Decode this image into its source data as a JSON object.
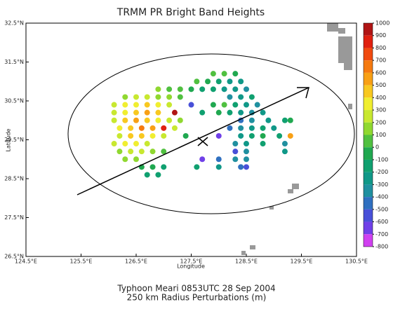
{
  "chart_data": {
    "type": "scatter",
    "title": "TRMM PR Bright Band Heights",
    "x_label": "Longitude",
    "y_label": "Latitude",
    "caption": [
      "Typhoon Meari 0853UTC 28 Sep 2004",
      "250 km Radius Perturbations (m)"
    ],
    "xlim": [
      124.5,
      130.5
    ],
    "ylim": [
      26.5,
      32.5
    ],
    "xticks": [
      {
        "value": 124.5,
        "label": "124.5°E"
      },
      {
        "value": 125.5,
        "label": "125.5°E"
      },
      {
        "value": 126.5,
        "label": "126.5°E"
      },
      {
        "value": 127.5,
        "label": "127.5°E"
      },
      {
        "value": 128.5,
        "label": "128.5°E"
      },
      {
        "value": 129.5,
        "label": "129.5°E"
      },
      {
        "value": 130.5,
        "label": "130.5°E"
      }
    ],
    "yticks": [
      {
        "value": 26.5,
        "label": "26.5°N"
      },
      {
        "value": 27.5,
        "label": "27.5°N"
      },
      {
        "value": 28.5,
        "label": "28.5°N"
      },
      {
        "value": 29.5,
        "label": "29.5°N"
      },
      {
        "value": 30.5,
        "label": "30.5°N"
      },
      {
        "value": 31.5,
        "label": "31.5°N"
      },
      {
        "value": 32.5,
        "label": "32.5°N"
      }
    ],
    "colorbar": {
      "ticks": [
        1000,
        900,
        800,
        700,
        600,
        500,
        400,
        300,
        200,
        100,
        0,
        -100,
        -200,
        -300,
        -400,
        -500,
        -600,
        -700,
        -800
      ],
      "colors": [
        "#b01515",
        "#e02010",
        "#f04a10",
        "#f57a10",
        "#f8a015",
        "#f8c820",
        "#f0ee30",
        "#c8e830",
        "#90d830",
        "#50c040",
        "#20a850",
        "#10a070",
        "#109888",
        "#2090a0",
        "#3070c0",
        "#4850d8",
        "#7040e8",
        "#d040f0"
      ]
    },
    "x": [
      126.9,
      127.1,
      127.3,
      127.5,
      127.7,
      127.9,
      128.1,
      128.3,
      128.5,
      127.6,
      127.8,
      128.0,
      128.2,
      128.4,
      127.9,
      128.1,
      128.3,
      126.3,
      126.5,
      126.7,
      126.9,
      127.1,
      127.3,
      128.2,
      128.4,
      128.6,
      126.1,
      126.3,
      126.5,
      126.7,
      126.9,
      127.1,
      127.5,
      127.9,
      128.1,
      128.3,
      128.5,
      128.7,
      126.1,
      126.3,
      126.5,
      126.7,
      126.9,
      127.2,
      127.7,
      128.0,
      128.2,
      128.4,
      128.6,
      128.8,
      126.1,
      126.3,
      126.5,
      126.7,
      126.9,
      127.1,
      127.3,
      128.4,
      128.6,
      128.9,
      129.2,
      129.3,
      126.2,
      126.4,
      126.6,
      126.8,
      127.0,
      127.2,
      128.2,
      128.4,
      128.6,
      128.8,
      129.0,
      126.2,
      126.4,
      126.6,
      126.8,
      127.0,
      127.4,
      128.0,
      128.4,
      128.6,
      128.8,
      129.1,
      129.3,
      126.1,
      126.3,
      126.5,
      126.7,
      128.3,
      128.5,
      128.8,
      129.2,
      126.2,
      126.4,
      126.6,
      126.8,
      127.0,
      128.3,
      128.5,
      129.2,
      126.3,
      126.5,
      127.7,
      128.0,
      128.3,
      128.5,
      126.6,
      126.8,
      127.0,
      127.6,
      128.0,
      128.4,
      128.5,
      126.7,
      126.9
    ],
    "y": [
      30.8,
      30.8,
      30.8,
      30.8,
      30.8,
      30.8,
      30.8,
      30.8,
      30.8,
      31.0,
      31.0,
      31.0,
      31.0,
      31.0,
      31.2,
      31.2,
      31.2,
      30.6,
      30.6,
      30.6,
      30.6,
      30.6,
      30.6,
      30.6,
      30.6,
      30.6,
      30.4,
      30.4,
      30.4,
      30.4,
      30.4,
      30.4,
      30.4,
      30.4,
      30.4,
      30.4,
      30.4,
      30.4,
      30.2,
      30.2,
      30.2,
      30.2,
      30.2,
      30.2,
      30.2,
      30.2,
      30.2,
      30.2,
      30.2,
      30.2,
      30.0,
      30.0,
      30.0,
      30.0,
      30.0,
      30.0,
      30.0,
      30.0,
      30.0,
      30.0,
      30.0,
      30.0,
      29.8,
      29.8,
      29.8,
      29.8,
      29.8,
      29.8,
      29.8,
      29.8,
      29.8,
      29.8,
      29.8,
      29.6,
      29.6,
      29.6,
      29.6,
      29.6,
      29.6,
      29.6,
      29.6,
      29.6,
      29.6,
      29.6,
      29.6,
      29.4,
      29.4,
      29.4,
      29.4,
      29.4,
      29.4,
      29.4,
      29.4,
      29.2,
      29.2,
      29.2,
      29.2,
      29.2,
      29.2,
      29.2,
      29.2,
      29.0,
      29.0,
      29.0,
      29.0,
      29.0,
      29.0,
      28.8,
      28.8,
      28.8,
      28.8,
      28.8,
      28.8,
      28.8,
      28.6,
      28.6
    ],
    "values": [
      100,
      50,
      0,
      -100,
      -150,
      -200,
      -250,
      -300,
      -350,
      0,
      -100,
      -200,
      -300,
      -250,
      50,
      0,
      -100,
      150,
      200,
      250,
      150,
      100,
      50,
      -400,
      -300,
      -200,
      200,
      300,
      350,
      400,
      300,
      200,
      -600,
      -100,
      0,
      -150,
      -300,
      -350,
      250,
      350,
      450,
      500,
      400,
      900,
      -200,
      -100,
      -200,
      -300,
      -400,
      -250,
      200,
      400,
      500,
      450,
      350,
      250,
      100,
      -500,
      -350,
      -300,
      -200,
      -100,
      300,
      450,
      600,
      550,
      800,
      200,
      -450,
      -400,
      -300,
      -200,
      -300,
      250,
      400,
      450,
      350,
      200,
      -100,
      -700,
      -300,
      -150,
      -50,
      -200,
      500,
      200,
      300,
      350,
      250,
      -400,
      -300,
      -150,
      -350,
      150,
      250,
      200,
      100,
      50,
      -550,
      -400,
      -300,
      100,
      150,
      -700,
      -450,
      -400,
      -350,
      -100,
      -50,
      -200,
      -200,
      -250,
      -500,
      -600,
      -150,
      -200
    ]
  }
}
